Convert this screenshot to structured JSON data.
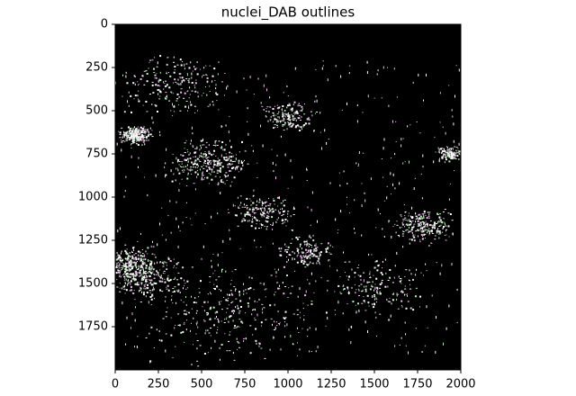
{
  "chart_data": {
    "type": "image",
    "title": "nuclei_DAB outlines",
    "xlim": [
      0,
      2000
    ],
    "ylim": [
      2000,
      0
    ],
    "xticks": [
      0,
      250,
      500,
      750,
      1000,
      1250,
      1500,
      1750,
      2000
    ],
    "yticks": [
      0,
      250,
      500,
      750,
      1000,
      1250,
      1500,
      1750
    ]
  }
}
